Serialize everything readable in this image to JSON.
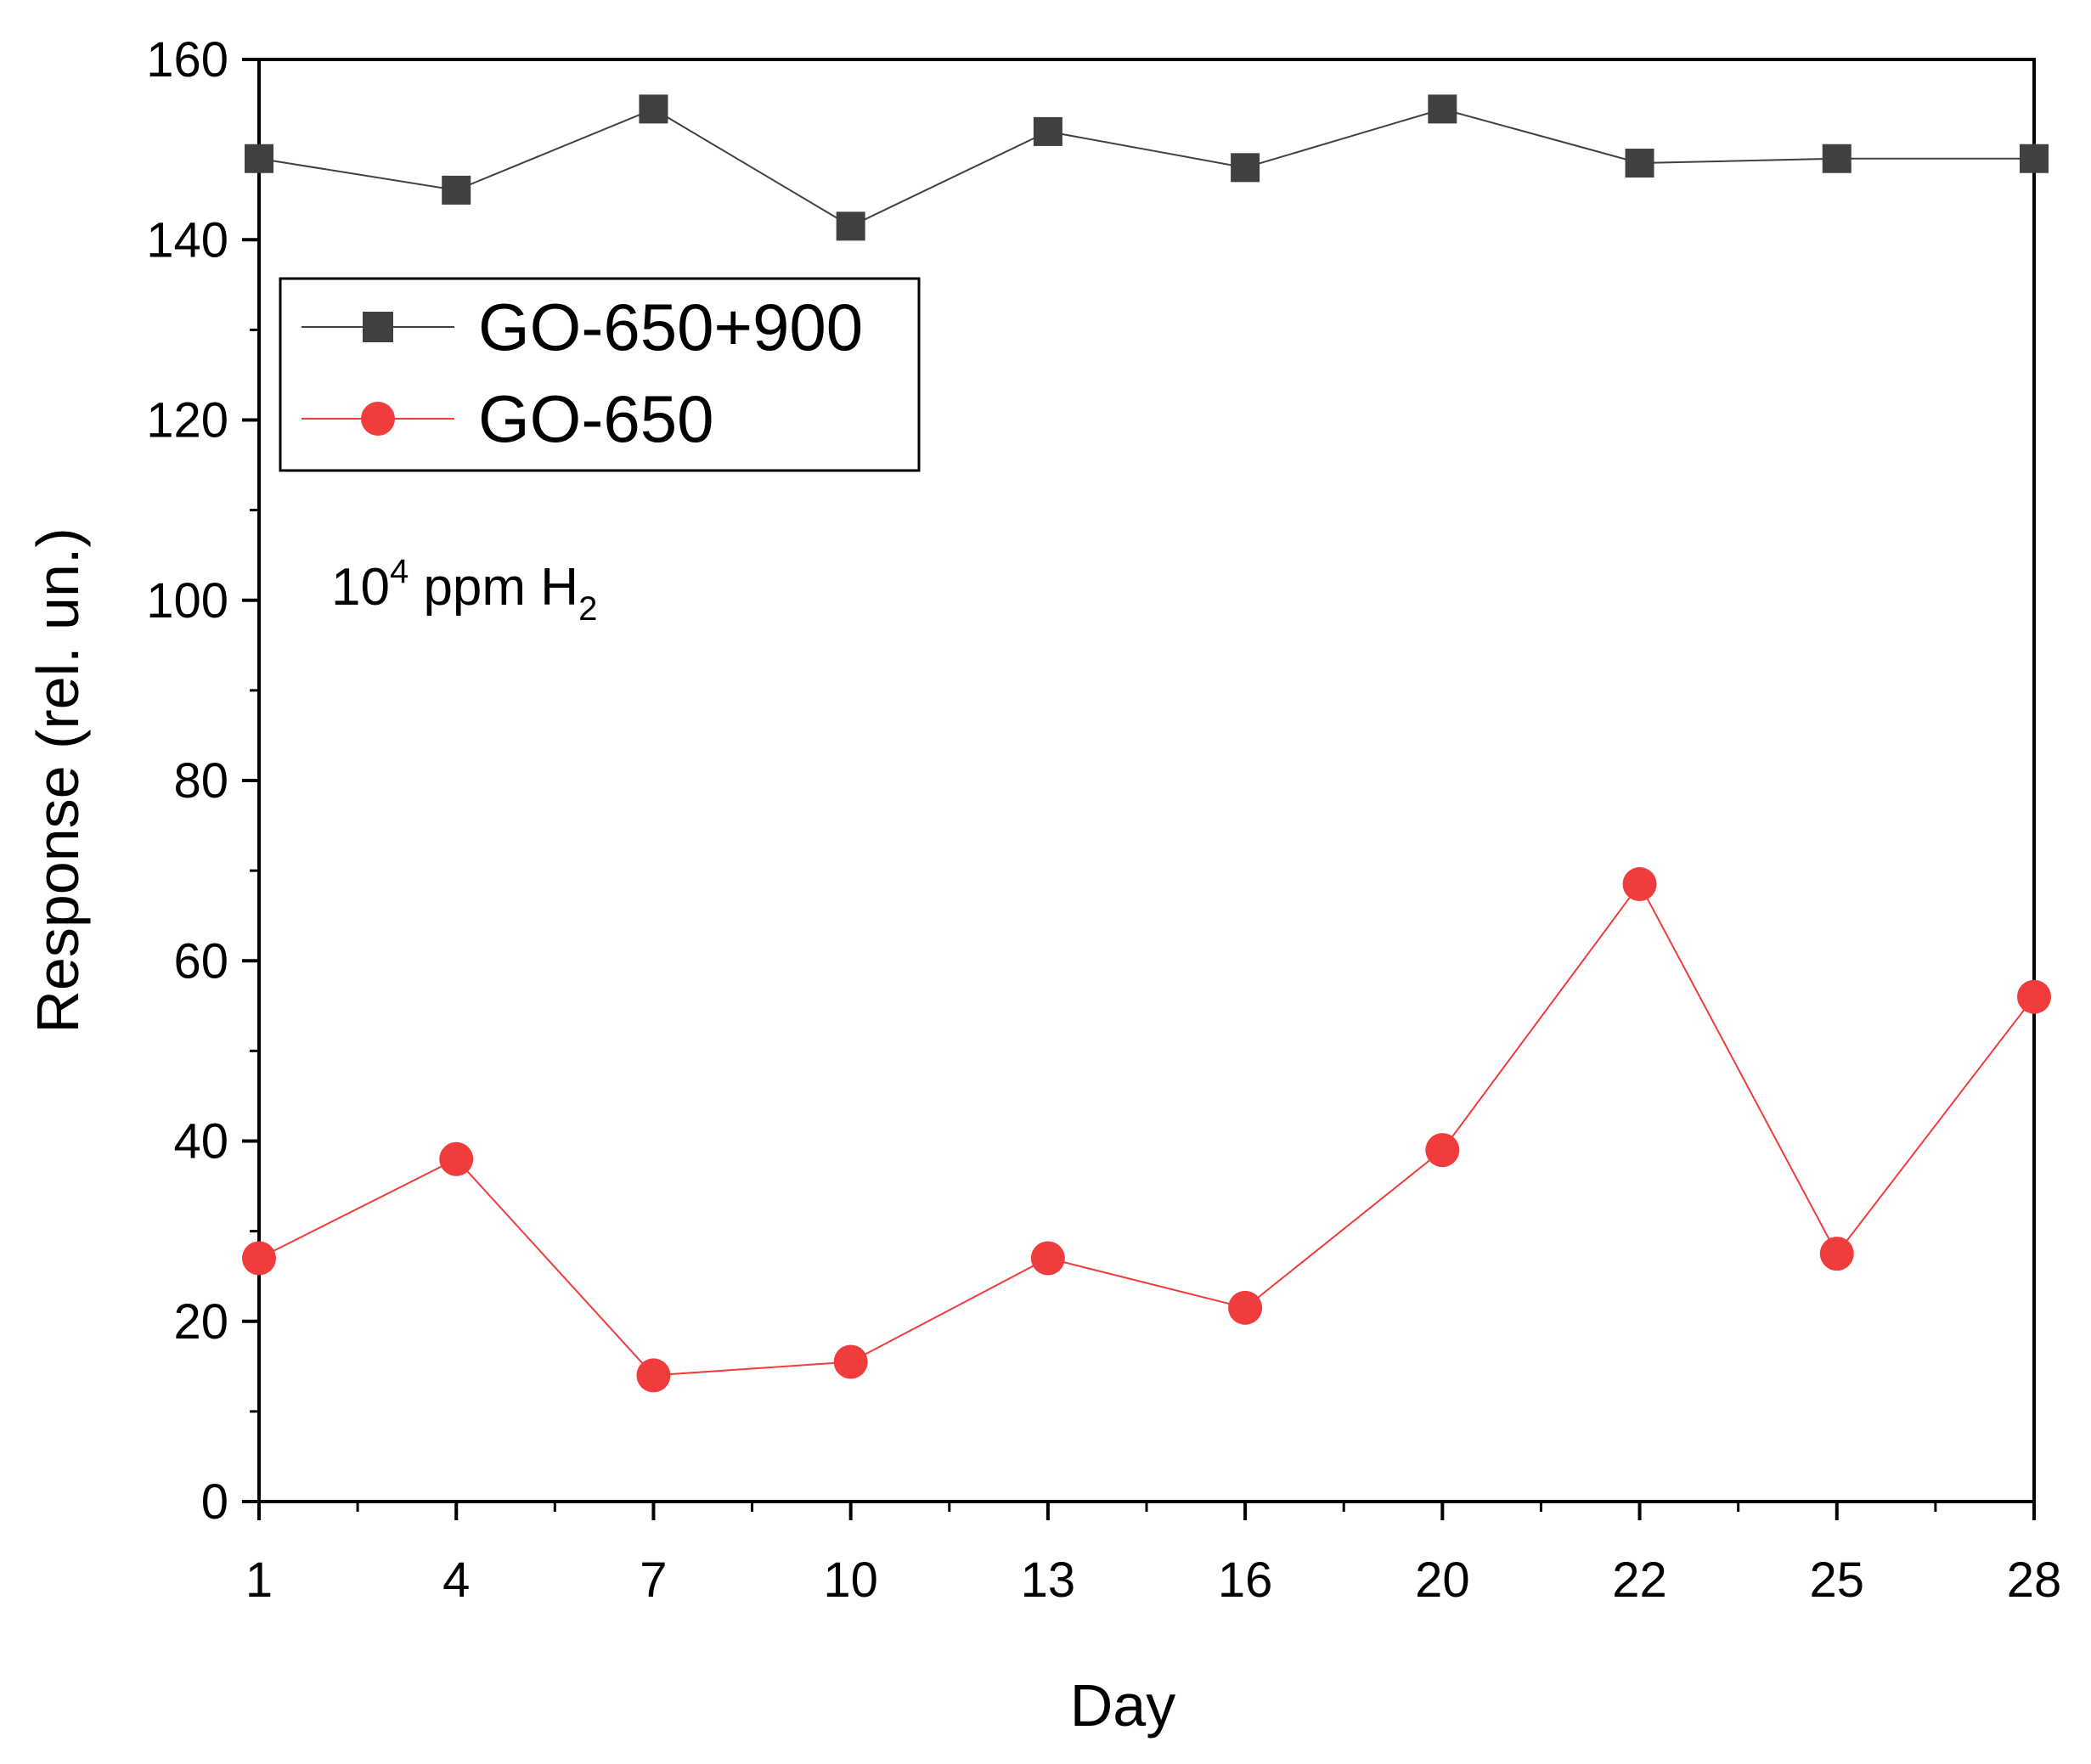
{
  "chart_data": {
    "type": "line",
    "categories": [
      "1",
      "4",
      "7",
      "10",
      "13",
      "16",
      "20",
      "22",
      "25",
      "28"
    ],
    "series": [
      {
        "name": "GO-650+900",
        "color": "#404040",
        "marker": "square",
        "values": [
          149,
          145.5,
          154.5,
          141.5,
          152,
          148,
          154.5,
          148.5,
          149,
          149
        ]
      },
      {
        "name": "GO-650",
        "color": "#f03c3c",
        "marker": "circle",
        "values": [
          27,
          38,
          14,
          15.5,
          27,
          21.5,
          39,
          68.5,
          27.5,
          56
        ]
      }
    ],
    "xlabel": "Day",
    "ylabel": "Response (rel. un.)",
    "ylim": [
      0,
      160
    ],
    "yticks": [
      0,
      20,
      40,
      60,
      80,
      100,
      120,
      140,
      160
    ],
    "grid": false,
    "legend_position": "upper-left",
    "annotation": {
      "base": "10",
      "sup": "4",
      "middle": " ppm H",
      "sub": "2"
    }
  }
}
